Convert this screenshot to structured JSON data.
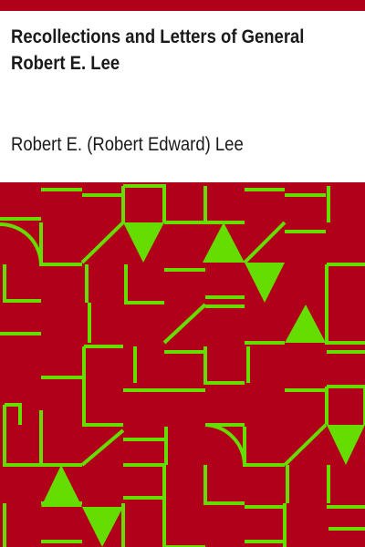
{
  "book": {
    "title_line1": "Recollections and Letters of General",
    "title_line2": "Robert E. Lee",
    "author": "Robert E. (Robert Edward) Lee"
  },
  "colors": {
    "accent": "#b0001a",
    "pattern_background": "#b0001a",
    "pattern_lines": "#66dd00",
    "text": "#1a1a1a",
    "paper": "#ffffff"
  }
}
